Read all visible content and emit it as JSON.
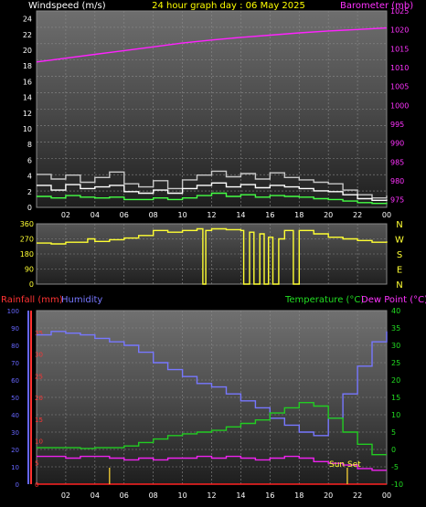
{
  "header": {
    "left_label": "Windspeed (m/s)",
    "center_label": "24 hour graph day : 06 May 2025",
    "right_label": "Barometer (mb)"
  },
  "lower_header": {
    "rain_label": "Rainfall (mm)",
    "humidity_label": "Humidity",
    "temp_label": "Temperature (°C)",
    "dew_label": "Dew Point (°C)"
  },
  "annotations": {
    "sunset": "Sun Set"
  },
  "colors": {
    "wind": "#ffffff",
    "gust": "#c8c8c8",
    "wind_avg": "#44ff44",
    "barometer": "#ff22ff",
    "direction": "#ffff33",
    "rain": "#ff2222",
    "humidity": "#7777ff",
    "temperature": "#22cc22",
    "dewpoint": "#ee22ee",
    "axis_red": "#ff3333",
    "axis_blue": "#6666ff",
    "axis_green": "#22dd22",
    "axis_mag": "#ff33ff"
  },
  "chart_data": [
    {
      "type": "line",
      "x_ticks": [
        "02",
        "04",
        "06",
        "08",
        "10",
        "12",
        "14",
        "16",
        "18",
        "20",
        "22",
        "00"
      ],
      "left_axis": {
        "label": "Windspeed (m/s)",
        "ylim": [
          0,
          25
        ],
        "ticks": [
          "0",
          "2",
          "4",
          "6",
          "8",
          "10",
          "12",
          "14",
          "16",
          "18",
          "20",
          "22",
          "24"
        ]
      },
      "right_axis": {
        "label": "Barometer (mb)",
        "ylim": [
          973,
          1025
        ],
        "ticks": [
          "975",
          "980",
          "985",
          "990",
          "995",
          "1000",
          "1005",
          "1010",
          "1015",
          "1020",
          "1025"
        ]
      },
      "series": [
        {
          "key": "gust",
          "axis": "left",
          "x": [
            0,
            1,
            2,
            3,
            4,
            5,
            6,
            7,
            8,
            9,
            10,
            11,
            12,
            13,
            14,
            15,
            16,
            17,
            18,
            19,
            20,
            21,
            22,
            23,
            24
          ],
          "values": [
            4.2,
            3.6,
            4.1,
            3.2,
            3.8,
            4.5,
            3.0,
            2.6,
            3.4,
            2.4,
            3.5,
            4.1,
            4.6,
            3.9,
            4.3,
            3.6,
            4.4,
            3.8,
            3.5,
            3.2,
            3.0,
            2.2,
            1.6,
            1.2,
            1.5
          ]
        },
        {
          "key": "wind",
          "axis": "left",
          "x": [
            0,
            1,
            2,
            3,
            4,
            5,
            6,
            7,
            8,
            9,
            10,
            11,
            12,
            13,
            14,
            15,
            16,
            17,
            18,
            19,
            20,
            21,
            22,
            23,
            24
          ],
          "values": [
            2.8,
            2.2,
            2.9,
            2.4,
            2.6,
            2.8,
            2.0,
            1.8,
            2.2,
            1.8,
            2.4,
            2.8,
            3.1,
            2.6,
            2.9,
            2.5,
            2.8,
            2.6,
            2.4,
            2.1,
            2.0,
            1.6,
            1.1,
            0.9,
            1.0
          ]
        },
        {
          "key": "wind_avg",
          "axis": "left",
          "x": [
            0,
            1,
            2,
            3,
            4,
            5,
            6,
            7,
            8,
            9,
            10,
            11,
            12,
            13,
            14,
            15,
            16,
            17,
            18,
            19,
            20,
            21,
            22,
            23,
            24
          ],
          "values": [
            1.4,
            1.2,
            1.5,
            1.3,
            1.2,
            1.3,
            1.0,
            1.0,
            1.2,
            1.0,
            1.2,
            1.5,
            1.8,
            1.4,
            1.6,
            1.3,
            1.5,
            1.4,
            1.3,
            1.1,
            1.0,
            0.8,
            0.6,
            0.5,
            0.6
          ]
        },
        {
          "key": "barometer",
          "axis": "right",
          "x": [
            0,
            2,
            4,
            6,
            8,
            10,
            12,
            14,
            16,
            18,
            20,
            22,
            24
          ],
          "values": [
            1011.5,
            1012.5,
            1013.5,
            1014.5,
            1015.5,
            1016.5,
            1017.3,
            1018.0,
            1018.6,
            1019.2,
            1019.7,
            1020.1,
            1020.5
          ]
        }
      ]
    },
    {
      "type": "line",
      "y_ticks": [
        "0",
        "90",
        "180",
        "270",
        "360"
      ],
      "compass": [
        "N",
        "W",
        "S",
        "E",
        "N"
      ],
      "ylim": [
        0,
        360
      ],
      "series": [
        {
          "key": "direction",
          "x": [
            0,
            1,
            2,
            3,
            3.5,
            4,
            5,
            6,
            7,
            8,
            9,
            10,
            11,
            11.4,
            11.6,
            12,
            13,
            14,
            14.2,
            14.6,
            14.9,
            15.3,
            15.6,
            15.9,
            16.2,
            16.6,
            17,
            17.6,
            18,
            19,
            20,
            21,
            22,
            23,
            24
          ],
          "values": [
            245,
            240,
            250,
            250,
            270,
            255,
            265,
            275,
            290,
            320,
            310,
            320,
            330,
            0,
            320,
            330,
            325,
            320,
            0,
            310,
            0,
            300,
            0,
            280,
            0,
            270,
            320,
            0,
            320,
            300,
            280,
            270,
            260,
            250,
            255
          ]
        }
      ]
    },
    {
      "type": "line",
      "x_ticks": [
        "02",
        "04",
        "06",
        "08",
        "10",
        "12",
        "14",
        "16",
        "18",
        "20",
        "22",
        "00"
      ],
      "rain_axis": {
        "ylim": [
          0,
          40
        ],
        "ticks": [
          "0",
          "5",
          "10",
          "15",
          "20",
          "25",
          "30",
          "35"
        ]
      },
      "humidity_axis": {
        "ylim": [
          0,
          100
        ],
        "ticks": [
          "0",
          "10",
          "20",
          "30",
          "40",
          "50",
          "60",
          "70",
          "80",
          "90",
          "100"
        ]
      },
      "temp_axis": {
        "ylim": [
          -10,
          40
        ],
        "ticks": [
          "-10",
          "-5",
          "0",
          "5",
          "10",
          "15",
          "20",
          "25",
          "30",
          "35",
          "40"
        ]
      },
      "series": [
        {
          "key": "humidity",
          "axis": "humidity",
          "x": [
            0,
            1,
            2,
            3,
            4,
            5,
            6,
            7,
            8,
            9,
            10,
            11,
            12,
            13,
            14,
            15,
            16,
            17,
            18,
            19,
            20,
            21,
            22,
            23,
            24
          ],
          "values": [
            86,
            88,
            87,
            86,
            84,
            82,
            80,
            76,
            70,
            66,
            62,
            58,
            56,
            52,
            48,
            44,
            38,
            34,
            30,
            28,
            38,
            52,
            68,
            82,
            88
          ]
        },
        {
          "key": "temperature",
          "axis": "temp",
          "x": [
            0,
            1,
            2,
            3,
            4,
            5,
            6,
            7,
            8,
            9,
            10,
            11,
            12,
            13,
            14,
            15,
            16,
            17,
            18,
            19,
            20,
            21,
            22,
            23,
            24
          ],
          "values": [
            0.5,
            0.5,
            0.5,
            0.3,
            0.5,
            0.5,
            1.0,
            2.0,
            3.0,
            4.0,
            4.5,
            5.0,
            5.5,
            6.5,
            7.5,
            8.5,
            10.5,
            12.0,
            13.5,
            12.5,
            9.0,
            5.0,
            1.5,
            -1.5,
            -1.5
          ]
        },
        {
          "key": "dewpoint",
          "axis": "temp",
          "x": [
            0,
            1,
            2,
            3,
            4,
            5,
            6,
            7,
            8,
            9,
            10,
            11,
            12,
            13,
            14,
            15,
            16,
            17,
            18,
            19,
            20,
            21,
            22,
            23,
            24
          ],
          "values": [
            -2.0,
            -2.0,
            -2.5,
            -2.0,
            -2.0,
            -2.5,
            -3.0,
            -2.5,
            -3.0,
            -2.5,
            -2.5,
            -2.0,
            -2.5,
            -2.0,
            -2.5,
            -3.0,
            -2.5,
            -2.0,
            -2.5,
            -3.5,
            -4.0,
            -4.5,
            -5.5,
            -6.0,
            -6.0
          ]
        },
        {
          "key": "rain",
          "axis": "rain",
          "x": [
            0,
            24
          ],
          "values": [
            0,
            0
          ]
        }
      ]
    }
  ]
}
